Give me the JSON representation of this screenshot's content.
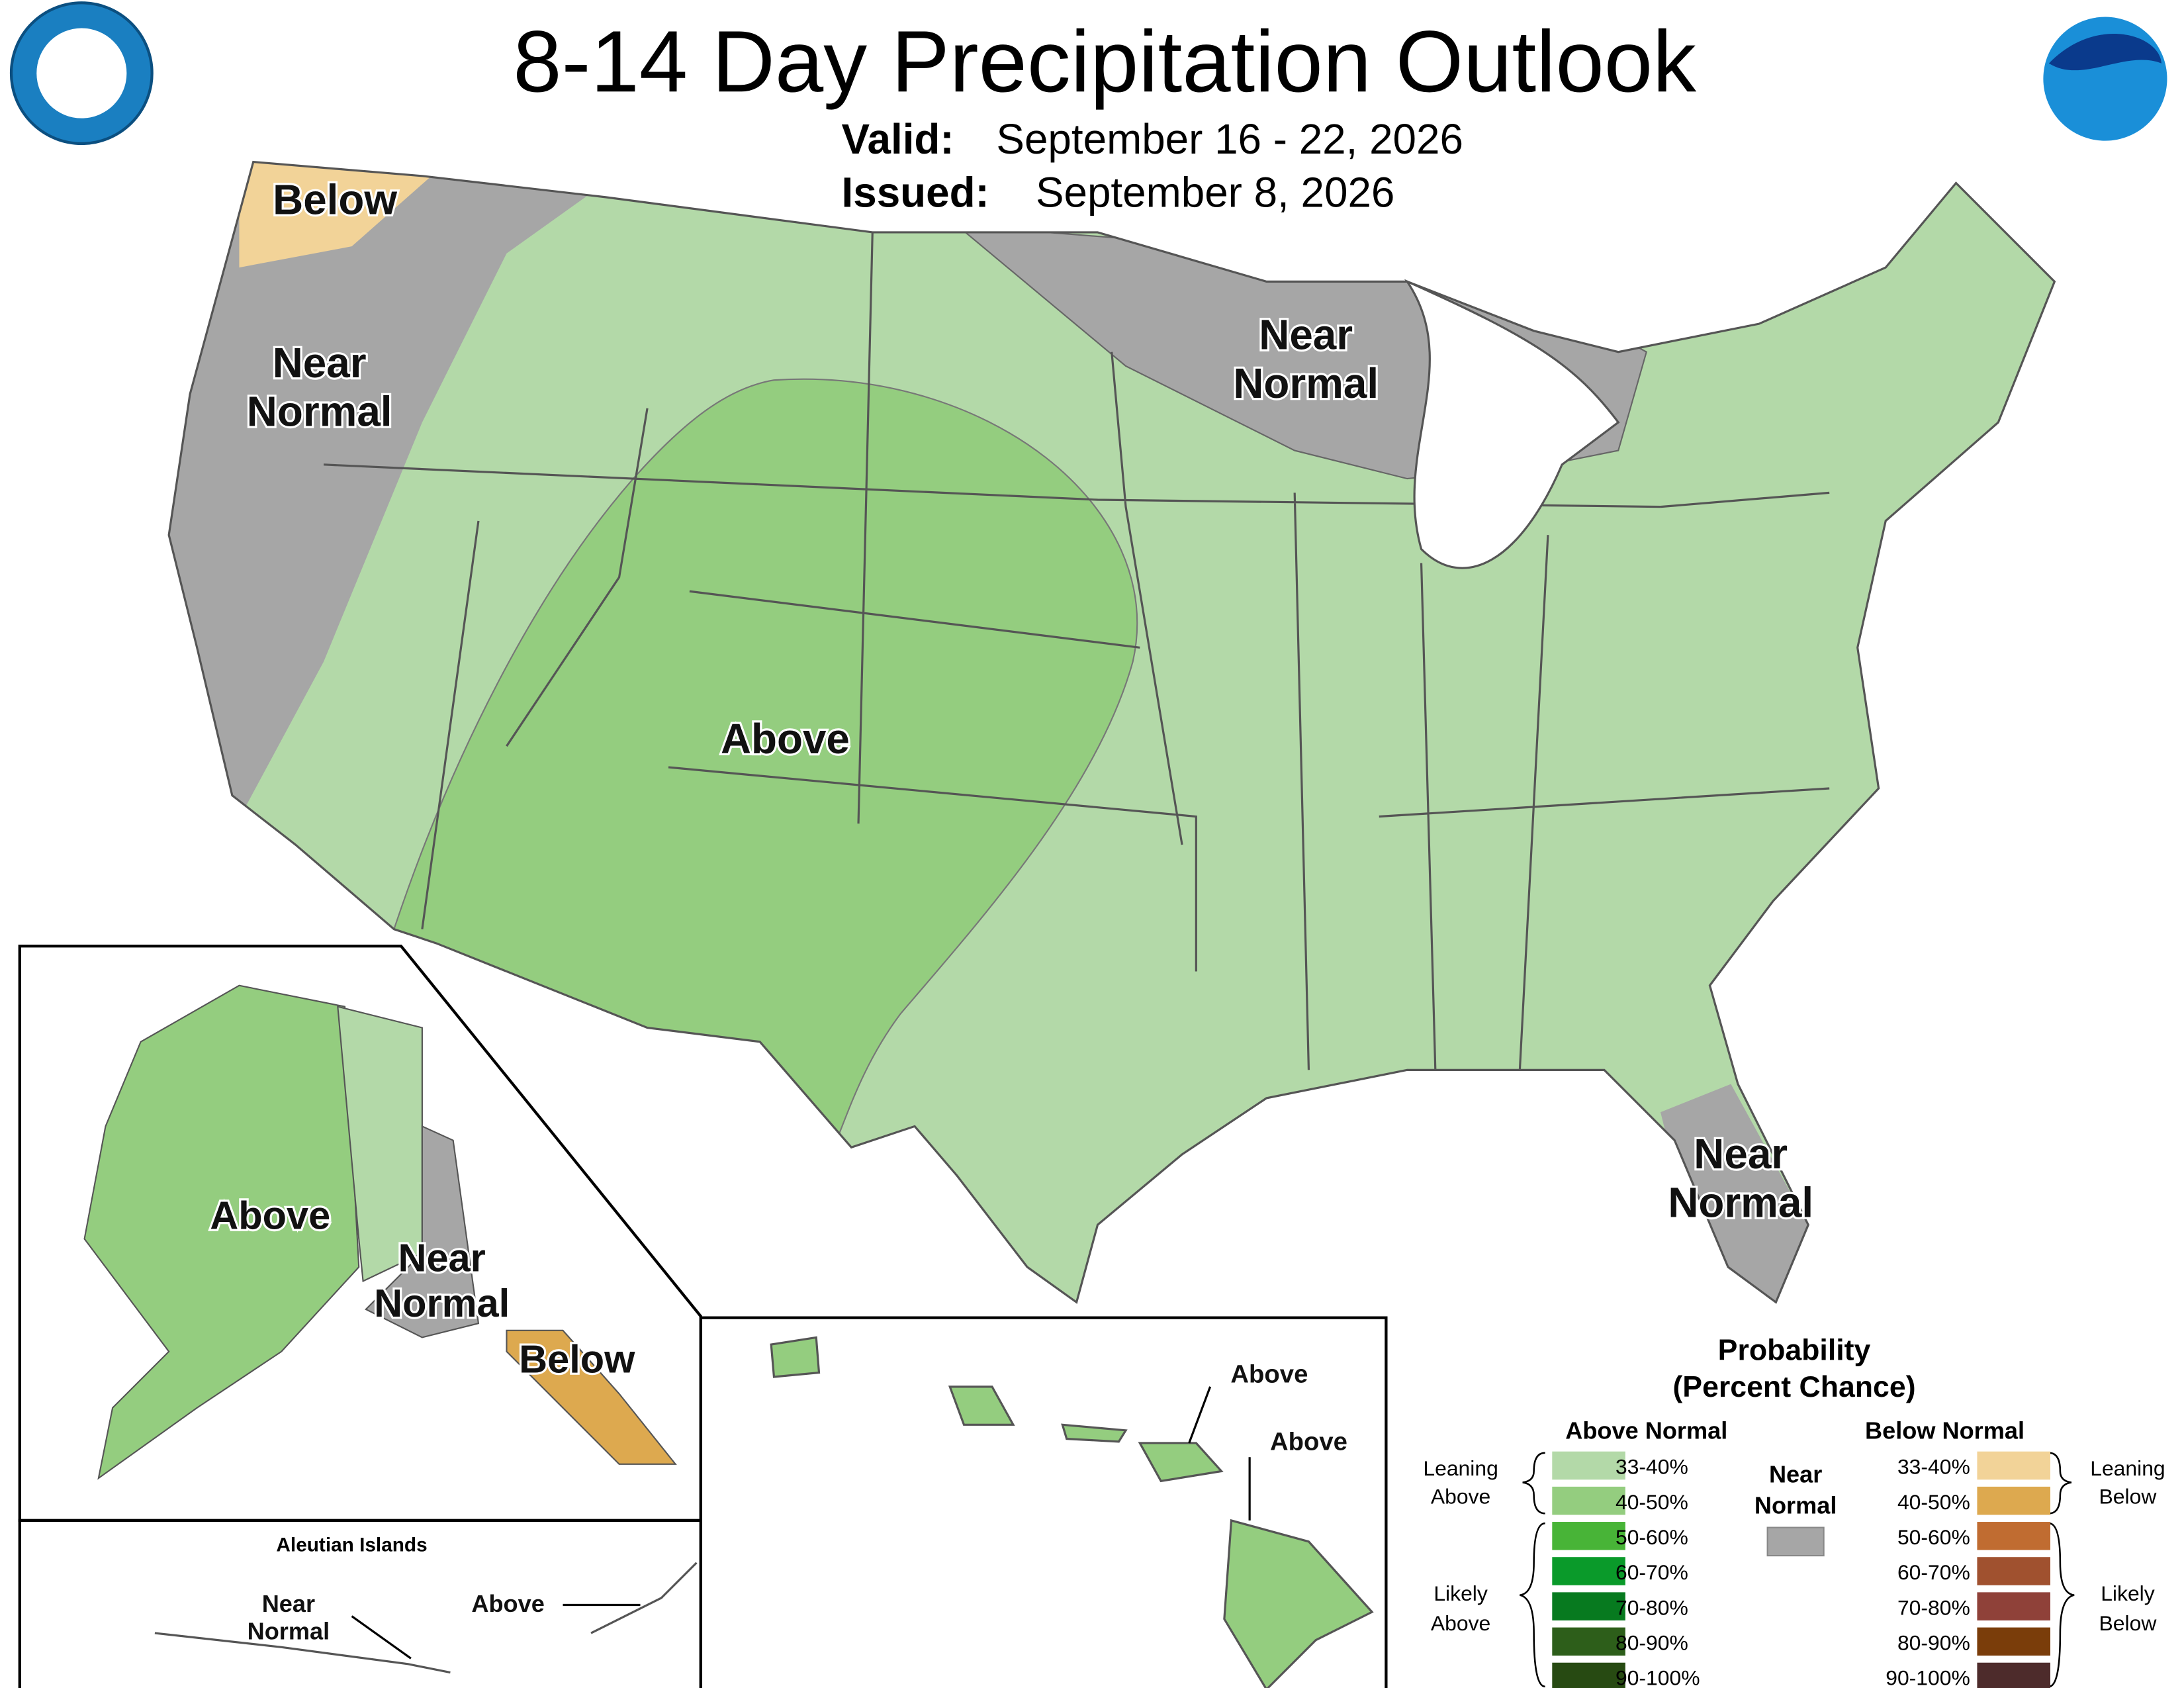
{
  "header": {
    "title": "8-14 Day Precipitation Outlook",
    "valid_label": "Valid:",
    "valid": "September 16 - 22, 2026",
    "issued_label": "Issued:",
    "issued": "September 8, 2026"
  },
  "map_labels": [
    {
      "lines": [
        "Below"
      ]
    },
    {
      "lines": [
        "Near",
        "Normal"
      ]
    },
    {
      "lines": [
        "Near",
        "Normal"
      ]
    },
    {
      "lines": [
        "Above"
      ]
    },
    {
      "lines": [
        "Near",
        "Normal"
      ]
    }
  ],
  "alaska_labels": [
    {
      "lines": [
        "Above"
      ]
    },
    {
      "lines": [
        "Near",
        "Normal"
      ]
    },
    {
      "lines": [
        "Below"
      ]
    }
  ],
  "aleutian_title": "Aleutian Islands",
  "aleutian_labels": [
    {
      "lines": [
        "Near",
        "Normal"
      ]
    },
    {
      "lines": [
        "Above"
      ]
    }
  ],
  "hawaii_labels": [
    {
      "lines": [
        "Above"
      ]
    },
    {
      "lines": [
        "Above"
      ]
    }
  ],
  "legend": {
    "title": [
      "Probability",
      "(Percent Chance)"
    ],
    "above_heading": "Above Normal",
    "below_heading": "Below Normal",
    "near_heading": [
      "Near",
      "Normal"
    ],
    "near_color": "#a6a6a6",
    "leaning_above": [
      "Leaning",
      "Above"
    ],
    "likely_above": [
      "Likely",
      "Above"
    ],
    "leaning_below": [
      "Leaning",
      "Below"
    ],
    "likely_below": [
      "Likely",
      "Below"
    ],
    "above": [
      {
        "label": "33-40%",
        "color": "#b3d9a8"
      },
      {
        "label": "40-50%",
        "color": "#94cd7f"
      },
      {
        "label": "50-60%",
        "color": "#48b437"
      },
      {
        "label": "60-70%",
        "color": "#0a9a2a"
      },
      {
        "label": "70-80%",
        "color": "#077a1f"
      },
      {
        "label": "80-90%",
        "color": "#2d5e1a"
      },
      {
        "label": "90-100%",
        "color": "#274a12"
      }
    ],
    "below": [
      {
        "label": "33-40%",
        "color": "#f2d398"
      },
      {
        "label": "40-50%",
        "color": "#dda94f"
      },
      {
        "label": "50-60%",
        "color": "#c06c31"
      },
      {
        "label": "60-70%",
        "color": "#a0512f"
      },
      {
        "label": "70-80%",
        "color": "#8f4139"
      },
      {
        "label": "80-90%",
        "color": "#7a3d0a"
      },
      {
        "label": "90-100%",
        "color": "#4d2b2b"
      }
    ]
  }
}
